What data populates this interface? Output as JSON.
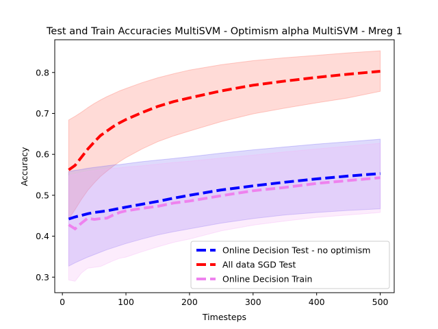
{
  "chart_data": {
    "type": "line",
    "title": "Test and Train Accuracies MultiSVM - Optimism alpha MultiSVM - Mreg 1",
    "xlabel": "Timesteps",
    "ylabel": "Accuracy",
    "xlim": [
      -12,
      522
    ],
    "ylim": [
      0.262,
      0.88
    ],
    "xticks": [
      0,
      100,
      200,
      300,
      400,
      500
    ],
    "yticks": [
      0.3,
      0.4,
      0.5,
      0.6,
      0.7,
      0.8
    ],
    "xtick_labels": [
      "0",
      "100",
      "200",
      "300",
      "400",
      "500"
    ],
    "ytick_labels": [
      "0.3",
      "0.4",
      "0.5",
      "0.6",
      "0.7",
      "0.8"
    ],
    "legend_position": "lower-right",
    "series": [
      {
        "name": "All data SGD Test",
        "color": "#ff0000",
        "band_color": "#ff6f61",
        "x": [
          10,
          20,
          30,
          40,
          50,
          60,
          70,
          80,
          90,
          100,
          125,
          150,
          175,
          200,
          250,
          300,
          350,
          400,
          450,
          500
        ],
        "y": [
          0.562,
          0.573,
          0.593,
          0.613,
          0.63,
          0.646,
          0.657,
          0.668,
          0.677,
          0.685,
          0.702,
          0.717,
          0.729,
          0.738,
          0.755,
          0.769,
          0.779,
          0.788,
          0.796,
          0.803
        ],
        "lower": [
          0.442,
          0.465,
          0.49,
          0.512,
          0.53,
          0.546,
          0.559,
          0.571,
          0.582,
          0.592,
          0.613,
          0.631,
          0.645,
          0.657,
          0.68,
          0.699,
          0.713,
          0.726,
          0.738,
          0.754
        ],
        "upper": [
          0.684,
          0.693,
          0.703,
          0.714,
          0.724,
          0.733,
          0.741,
          0.748,
          0.755,
          0.761,
          0.775,
          0.787,
          0.797,
          0.806,
          0.819,
          0.829,
          0.836,
          0.842,
          0.848,
          0.853
        ]
      },
      {
        "name": "Online Decision Test - no optimism",
        "color": "#0000ff",
        "band_color": "#7b6cf5",
        "x": [
          10,
          20,
          30,
          40,
          50,
          60,
          70,
          80,
          90,
          100,
          125,
          150,
          175,
          200,
          250,
          300,
          350,
          400,
          450,
          500
        ],
        "y": [
          0.442,
          0.447,
          0.451,
          0.455,
          0.458,
          0.46,
          0.462,
          0.465,
          0.468,
          0.471,
          0.478,
          0.485,
          0.493,
          0.5,
          0.513,
          0.523,
          0.532,
          0.54,
          0.547,
          0.553
        ],
        "lower": [
          0.327,
          0.335,
          0.342,
          0.349,
          0.355,
          0.361,
          0.367,
          0.372,
          0.377,
          0.382,
          0.393,
          0.403,
          0.411,
          0.418,
          0.432,
          0.443,
          0.452,
          0.458,
          0.463,
          0.467
        ],
        "upper": [
          0.558,
          0.561,
          0.563,
          0.566,
          0.568,
          0.57,
          0.572,
          0.574,
          0.575,
          0.577,
          0.582,
          0.586,
          0.59,
          0.594,
          0.603,
          0.611,
          0.618,
          0.625,
          0.631,
          0.637
        ]
      },
      {
        "name": "Online Decision Train",
        "color": "#ee82ee",
        "band_color": "#f5b3f5",
        "x": [
          10,
          20,
          30,
          40,
          50,
          60,
          70,
          80,
          90,
          100,
          125,
          150,
          175,
          200,
          250,
          300,
          350,
          400,
          450,
          500
        ],
        "y": [
          0.428,
          0.418,
          0.432,
          0.444,
          0.441,
          0.443,
          0.444,
          0.452,
          0.458,
          0.462,
          0.468,
          0.473,
          0.481,
          0.486,
          0.499,
          0.511,
          0.519,
          0.529,
          0.536,
          0.543
        ],
        "lower": [
          0.293,
          0.29,
          0.31,
          0.322,
          0.324,
          0.326,
          0.333,
          0.34,
          0.346,
          0.349,
          0.362,
          0.374,
          0.385,
          0.393,
          0.413,
          0.427,
          0.437,
          0.446,
          0.452,
          0.458
        ],
        "upper": [
          0.548,
          0.551,
          0.555,
          0.558,
          0.56,
          0.562,
          0.564,
          0.566,
          0.567,
          0.569,
          0.572,
          0.576,
          0.58,
          0.583,
          0.591,
          0.598,
          0.606,
          0.613,
          0.62,
          0.627
        ]
      }
    ],
    "legend_order": [
      1,
      0,
      2
    ]
  }
}
